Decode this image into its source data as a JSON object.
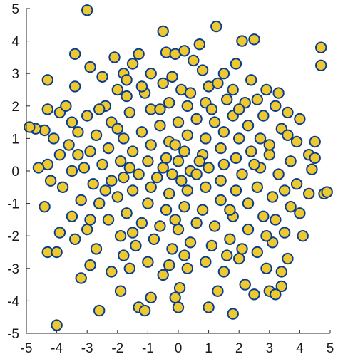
{
  "chart_data": {
    "type": "scatter",
    "title": "",
    "xlabel": "",
    "ylabel": "",
    "xlim": [
      -5,
      5
    ],
    "ylim": [
      -5,
      5
    ],
    "x_ticks": [
      "-5",
      "-4",
      "-3",
      "-2",
      "-1",
      "0",
      "1",
      "2",
      "3",
      "4",
      "5"
    ],
    "y_ticks": [
      "-5",
      "-4",
      "-3",
      "-2",
      "-1",
      "0",
      "1",
      "2",
      "3",
      "4",
      "5"
    ],
    "grid": false,
    "marker": {
      "shape": "circle",
      "fill": "#EDC92F",
      "edge": "#0A3D91"
    },
    "points": [
      [
        -3.0,
        4.95
      ],
      [
        1.25,
        4.45
      ],
      [
        2.5,
        4.05
      ],
      [
        -0.5,
        4.3
      ],
      [
        4.7,
        3.8
      ],
      [
        2.1,
        4.0
      ],
      [
        -3.4,
        3.6
      ],
      [
        -0.4,
        3.65
      ],
      [
        -0.1,
        3.6
      ],
      [
        4.7,
        3.25
      ],
      [
        -1.3,
        3.6
      ],
      [
        0.2,
        3.7
      ],
      [
        0.5,
        3.4
      ],
      [
        -2.9,
        3.2
      ],
      [
        -0.9,
        3.0
      ],
      [
        -4.3,
        2.8
      ],
      [
        -3.4,
        2.6
      ],
      [
        -1.8,
        3.0
      ],
      [
        -2.0,
        2.5
      ],
      [
        -4.3,
        1.9
      ],
      [
        -3.9,
        1.8
      ],
      [
        -4.4,
        1.25
      ],
      [
        -4.7,
        1.3
      ],
      [
        -4.3,
        0.2
      ],
      [
        -4.6,
        0.1
      ],
      [
        -4.4,
        -1.1
      ],
      [
        -4.3,
        -2.5
      ],
      [
        -4.0,
        -2.5
      ],
      [
        -4.0,
        -4.75
      ],
      [
        -2.6,
        -4.3
      ],
      [
        -1.3,
        -4.2
      ],
      [
        -0.9,
        -3.9
      ],
      [
        0.0,
        -4.2
      ],
      [
        0.05,
        -3.6
      ],
      [
        1.3,
        -3.7
      ],
      [
        1.8,
        -4.4
      ],
      [
        2.5,
        -3.8
      ],
      [
        3.0,
        -3.7
      ],
      [
        3.4,
        -3.55
      ],
      [
        3.6,
        -2.7
      ],
      [
        3.1,
        -2.2
      ],
      [
        4.0,
        -1.3
      ],
      [
        4.3,
        -0.7
      ],
      [
        4.8,
        -0.7
      ],
      [
        4.4,
        0.05
      ],
      [
        4.3,
        0.5
      ],
      [
        3.6,
        1.8
      ],
      [
        3.2,
        2.0
      ],
      [
        3.3,
        2.4
      ],
      [
        2.9,
        2.5
      ],
      [
        2.4,
        2.8
      ],
      [
        1.8,
        2.5
      ],
      [
        1.0,
        2.6
      ],
      [
        0.1,
        2.5
      ],
      [
        -0.5,
        2.7
      ],
      [
        -1.1,
        2.4
      ],
      [
        -1.7,
        2.3
      ],
      [
        -2.4,
        2.0
      ],
      [
        -3.0,
        1.7
      ],
      [
        -3.5,
        1.5
      ],
      [
        -3.3,
        1.2
      ],
      [
        -3.6,
        0.8
      ],
      [
        -3.9,
        0.5
      ],
      [
        -3.5,
        0.0
      ],
      [
        -3.8,
        -0.5
      ],
      [
        -3.2,
        -0.9
      ],
      [
        -3.5,
        -1.4
      ],
      [
        -3.0,
        -1.8
      ],
      [
        -3.4,
        -2.1
      ],
      [
        -2.7,
        -2.4
      ],
      [
        -2.9,
        -2.9
      ],
      [
        -2.2,
        -3.1
      ],
      [
        -1.6,
        -3.0
      ],
      [
        -1.0,
        -2.8
      ],
      [
        -0.5,
        -3.2
      ],
      [
        0.3,
        -3.0
      ],
      [
        0.9,
        -2.8
      ],
      [
        1.5,
        -3.1
      ],
      [
        2.0,
        -2.7
      ],
      [
        2.6,
        -2.5
      ],
      [
        2.9,
        -3.0
      ],
      [
        3.5,
        -1.9
      ],
      [
        3.7,
        -1.1
      ],
      [
        3.9,
        -0.4
      ],
      [
        3.7,
        0.3
      ],
      [
        3.9,
        0.9
      ],
      [
        3.4,
        1.3
      ],
      [
        2.8,
        1.7
      ],
      [
        2.2,
        2.1
      ],
      [
        1.6,
        2.2
      ],
      [
        0.9,
        2.1
      ],
      [
        0.3,
        2.0
      ],
      [
        -0.3,
        2.1
      ],
      [
        -0.9,
        1.9
      ],
      [
        -1.6,
        1.8
      ],
      [
        -2.2,
        1.5
      ],
      [
        -2.7,
        1.1
      ],
      [
        -2.9,
        0.6
      ],
      [
        -3.1,
        0.1
      ],
      [
        -2.8,
        -0.4
      ],
      [
        -2.6,
        -1.0
      ],
      [
        -2.3,
        -1.5
      ],
      [
        -1.9,
        -2.0
      ],
      [
        -1.4,
        -2.3
      ],
      [
        -0.8,
        -2.1
      ],
      [
        -0.2,
        -2.4
      ],
      [
        0.4,
        -2.2
      ],
      [
        1.1,
        -2.3
      ],
      [
        1.7,
        -2.1
      ],
      [
        2.3,
        -1.8
      ],
      [
        2.8,
        -1.4
      ],
      [
        3.1,
        -0.8
      ],
      [
        3.3,
        -0.1
      ],
      [
        3.0,
        0.5
      ],
      [
        2.7,
        1.0
      ],
      [
        2.3,
        1.4
      ],
      [
        1.8,
        1.7
      ],
      [
        1.2,
        1.5
      ],
      [
        0.6,
        1.6
      ],
      [
        0.0,
        1.5
      ],
      [
        -0.6,
        1.4
      ],
      [
        -1.2,
        1.2
      ],
      [
        -1.8,
        1.0
      ],
      [
        -2.3,
        0.7
      ],
      [
        -2.5,
        0.2
      ],
      [
        -2.2,
        -0.3
      ],
      [
        -2.0,
        -0.8
      ],
      [
        -1.7,
        -1.3
      ],
      [
        -1.2,
        -1.6
      ],
      [
        -0.6,
        -1.7
      ],
      [
        0.0,
        -1.8
      ],
      [
        0.6,
        -1.6
      ],
      [
        1.2,
        -1.7
      ],
      [
        1.8,
        -1.4
      ],
      [
        2.3,
        -1.0
      ],
      [
        2.6,
        -0.5
      ],
      [
        2.7,
        0.1
      ],
      [
        2.4,
        0.6
      ],
      [
        2.0,
        1.0
      ],
      [
        1.5,
        1.2
      ],
      [
        0.9,
        1.0
      ],
      [
        0.3,
        1.1
      ],
      [
        -0.3,
        0.9
      ],
      [
        -0.9,
        0.8
      ],
      [
        -1.5,
        0.6
      ],
      [
        -1.9,
        0.3
      ],
      [
        -1.8,
        -0.2
      ],
      [
        -1.5,
        -0.6
      ],
      [
        -1.0,
        -1.0
      ],
      [
        -0.4,
        -1.2
      ],
      [
        0.2,
        -1.1
      ],
      [
        0.8,
        -1.2
      ],
      [
        1.4,
        -0.9
      ],
      [
        1.9,
        -0.6
      ],
      [
        2.1,
        -0.1
      ],
      [
        1.9,
        0.4
      ],
      [
        1.4,
        0.7
      ],
      [
        0.8,
        0.5
      ],
      [
        0.2,
        0.6
      ],
      [
        -0.4,
        0.4
      ],
      [
        -1.0,
        0.3
      ],
      [
        -1.3,
        -0.1
      ],
      [
        -0.9,
        -0.5
      ],
      [
        -0.3,
        -0.7
      ],
      [
        0.3,
        -0.6
      ],
      [
        0.9,
        -0.5
      ],
      [
        1.4,
        -0.3
      ],
      [
        1.5,
        0.2
      ],
      [
        1.0,
        0.1
      ],
      [
        0.4,
        0.0
      ],
      [
        -0.2,
        -0.1
      ],
      [
        -0.7,
        -0.2
      ],
      [
        -0.5,
        0.1
      ],
      [
        0.1,
        -0.3
      ],
      [
        0.6,
        -0.1
      ],
      [
        0.7,
        0.3
      ],
      [
        0.0,
        0.3
      ],
      [
        -0.1,
        0.8
      ],
      [
        -2.5,
        2.9
      ],
      [
        -1.5,
        3.3
      ],
      [
        0.8,
        3.1
      ],
      [
        1.5,
        3.0
      ],
      [
        -3.7,
        2.0
      ],
      [
        -4.1,
        1.0
      ],
      [
        -4.2,
        -0.3
      ],
      [
        -3.9,
        -1.9
      ],
      [
        -3.2,
        -3.3
      ],
      [
        -1.9,
        -3.7
      ],
      [
        -0.1,
        -3.9
      ],
      [
        1.0,
        -4.2
      ],
      [
        2.2,
        -3.5
      ],
      [
        3.4,
        -3.1
      ],
      [
        4.1,
        -2.0
      ],
      [
        4.5,
        0.9
      ],
      [
        4.0,
        1.6
      ],
      [
        4.5,
        0.4
      ],
      [
        -2.1,
        3.5
      ],
      [
        0.7,
        3.9
      ],
      [
        1.9,
        3.3
      ],
      [
        -4.9,
        1.35
      ],
      [
        4.9,
        -0.65
      ],
      [
        -1.1,
        -4.3
      ],
      [
        3.2,
        -3.8
      ],
      [
        -1.7,
        2.8
      ],
      [
        -0.2,
        2.9
      ],
      [
        1.3,
        2.7
      ],
      [
        2.6,
        2.2
      ],
      [
        3.6,
        1.1
      ],
      [
        3.5,
        -0.6
      ],
      [
        2.9,
        -2.0
      ],
      [
        1.6,
        -2.6
      ],
      [
        -0.3,
        -2.9
      ],
      [
        -1.8,
        -2.6
      ],
      [
        -2.9,
        -1.5
      ],
      [
        -3.3,
        0.5
      ],
      [
        -2.6,
        1.9
      ],
      [
        -1.2,
        2.6
      ],
      [
        0.4,
        2.4
      ],
      [
        2.0,
        1.9
      ],
      [
        3.0,
        0.8
      ],
      [
        3.2,
        -1.5
      ],
      [
        2.1,
        -2.4
      ],
      [
        0.2,
        -2.6
      ],
      [
        -1.5,
        -1.9
      ],
      [
        -2.4,
        -0.6
      ],
      [
        -2.0,
        1.3
      ],
      [
        -0.6,
        1.9
      ],
      [
        1.1,
        1.9
      ],
      [
        2.5,
        0.2
      ],
      [
        1.7,
        -1.2
      ],
      [
        -0.1,
        -1.5
      ],
      [
        -1.6,
        0.1
      ]
    ]
  }
}
